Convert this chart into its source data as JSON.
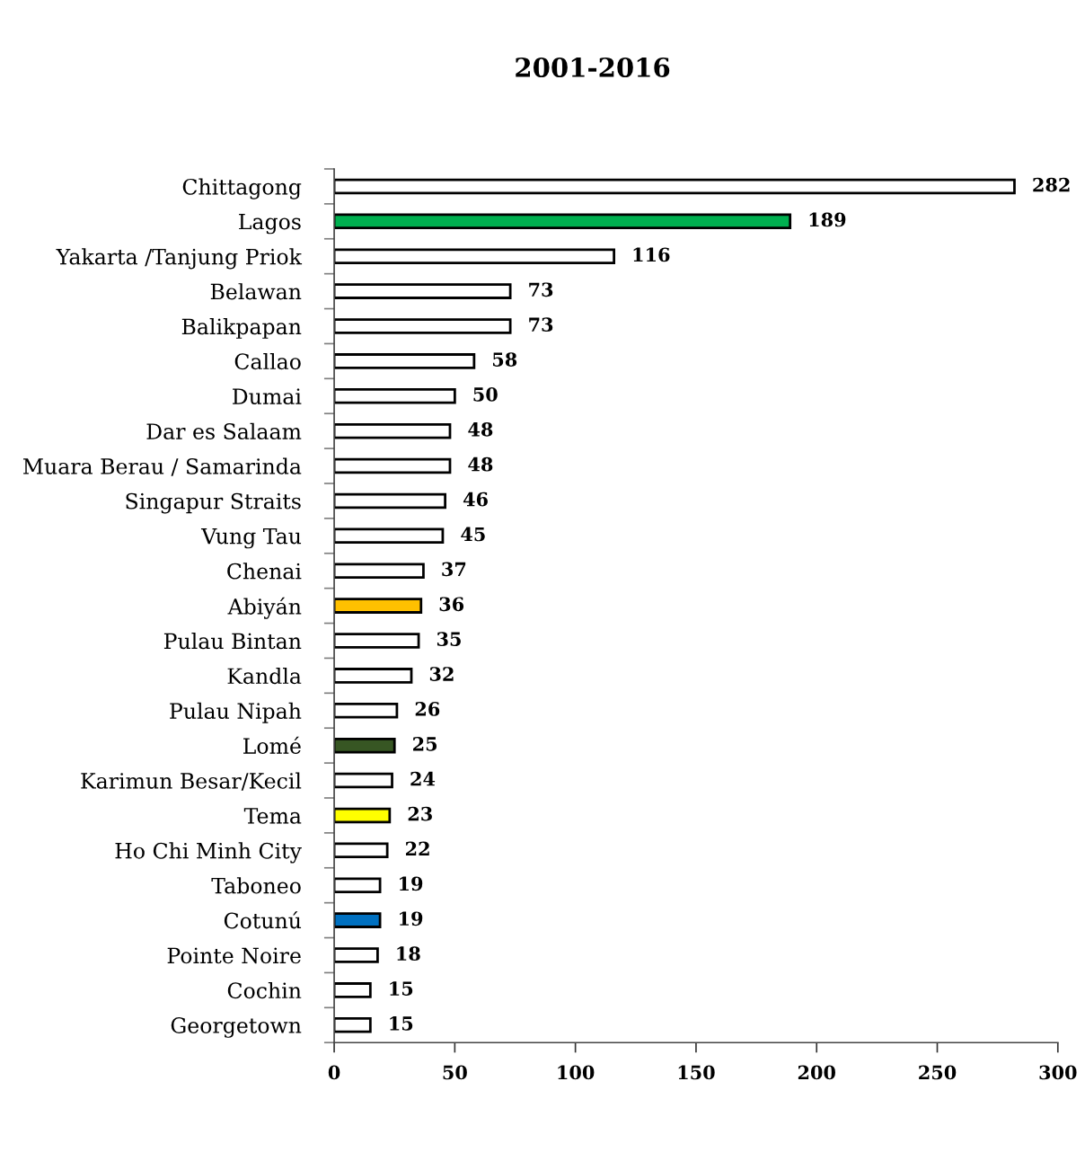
{
  "chart_data": {
    "type": "bar",
    "orientation": "horizontal",
    "title": "2001-2016",
    "categories": [
      "Chittagong",
      "Lagos",
      "Yakarta /Tanjung Priok",
      "Belawan",
      "Balikpapan",
      "Callao",
      "Dumai",
      "Dar es Salaam",
      "Muara Berau / Samarinda",
      "Singapur Straits",
      "Vung Tau",
      "Chenai",
      "Abiyán",
      "Pulau Bintan",
      "Kandla",
      "Pulau Nipah",
      "Lomé",
      "Karimun Besar/Kecil",
      "Tema",
      "Ho Chi Minh City",
      "Taboneo",
      "Cotunú",
      "Pointe Noire",
      "Cochin",
      "Georgetown"
    ],
    "values": [
      282,
      189,
      116,
      73,
      73,
      58,
      50,
      48,
      48,
      46,
      45,
      37,
      36,
      35,
      32,
      26,
      25,
      24,
      23,
      22,
      19,
      19,
      18,
      15,
      15
    ],
    "colors": [
      "#ffffff",
      "#00b050",
      "#ffffff",
      "#ffffff",
      "#ffffff",
      "#ffffff",
      "#ffffff",
      "#ffffff",
      "#ffffff",
      "#ffffff",
      "#ffffff",
      "#ffffff",
      "#ffc000",
      "#ffffff",
      "#ffffff",
      "#ffffff",
      "#375623",
      "#ffffff",
      "#ffff00",
      "#ffffff",
      "#ffffff",
      "#0070c0",
      "#ffffff",
      "#ffffff",
      "#ffffff"
    ],
    "xlim": [
      0,
      300
    ],
    "xticks": [
      0,
      50,
      100,
      150,
      200,
      250,
      300
    ],
    "data_labels": true,
    "grid": false
  }
}
